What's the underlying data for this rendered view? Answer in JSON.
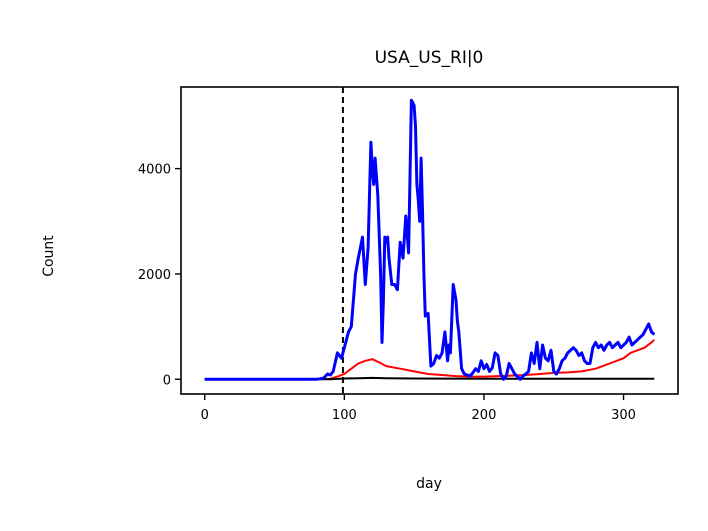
{
  "chart_data": {
    "type": "line",
    "title": "USA_US_RI|0",
    "xlabel": "day",
    "ylabel": "Count",
    "xlim": [
      -17,
      339
    ],
    "ylim": [
      -280,
      5550
    ],
    "xticks": [
      0,
      100,
      200,
      300
    ],
    "yticks": [
      0,
      2000,
      4000
    ],
    "grid": false,
    "legend": "none",
    "vline": {
      "x": 99,
      "style": "dashed",
      "color": "#000000"
    },
    "series": [
      {
        "color": "#0000ff",
        "x": [
          0,
          80,
          85,
          88,
          90,
          92,
          95,
          98,
          100,
          103,
          105,
          108,
          110,
          113,
          115,
          117,
          118,
          119,
          120,
          121,
          122,
          124,
          126,
          127,
          128,
          129,
          130,
          131,
          132,
          134,
          136,
          138,
          140,
          142,
          144,
          146,
          148,
          150,
          151,
          152,
          153,
          154,
          155,
          156,
          157,
          158,
          160,
          162,
          164,
          166,
          168,
          170,
          172,
          174,
          175,
          176,
          178,
          180,
          181,
          182,
          184,
          186,
          188,
          190,
          192,
          194,
          196,
          198,
          200,
          202,
          204,
          206,
          208,
          210,
          212,
          214,
          216,
          218,
          220,
          222,
          224,
          226,
          228,
          230,
          232,
          234,
          236,
          238,
          240,
          242,
          244,
          246,
          248,
          250,
          252,
          254,
          256,
          258,
          260,
          262,
          264,
          266,
          268,
          270,
          272,
          274,
          276,
          278,
          280,
          282,
          284,
          286,
          288,
          290,
          292,
          294,
          296,
          298,
          300,
          302,
          304,
          306,
          308,
          310,
          312,
          314,
          316,
          318,
          320,
          322
        ],
        "y": [
          0,
          0,
          20,
          100,
          80,
          150,
          500,
          400,
          600,
          900,
          1000,
          2000,
          2300,
          2700,
          1800,
          2500,
          3500,
          4500,
          4000,
          3700,
          4200,
          3500,
          2000,
          700,
          1500,
          2700,
          2600,
          2700,
          2300,
          1800,
          1800,
          1700,
          2600,
          2300,
          3100,
          2400,
          5300,
          5200,
          4800,
          3700,
          3400,
          3000,
          4200,
          3200,
          2000,
          1200,
          1250,
          250,
          300,
          450,
          400,
          500,
          900,
          350,
          650,
          500,
          1800,
          1500,
          1100,
          900,
          200,
          100,
          80,
          60,
          120,
          200,
          150,
          350,
          200,
          280,
          150,
          220,
          500,
          450,
          100,
          0,
          60,
          300,
          200,
          100,
          50,
          0,
          60,
          100,
          150,
          500,
          300,
          700,
          200,
          650,
          400,
          350,
          550,
          150,
          100,
          200,
          350,
          400,
          500,
          550,
          600,
          550,
          450,
          500,
          350,
          300,
          300,
          600,
          700,
          600,
          650,
          550,
          650,
          700,
          600,
          650,
          700,
          600,
          650,
          700,
          800,
          650,
          700,
          750,
          800,
          850,
          950,
          1050,
          900,
          850
        ]
      },
      {
        "color": "#ff0000",
        "x": [
          0,
          80,
          90,
          95,
          100,
          105,
          110,
          115,
          120,
          125,
          130,
          140,
          150,
          160,
          170,
          180,
          190,
          200,
          210,
          220,
          230,
          240,
          250,
          260,
          270,
          280,
          290,
          300,
          305,
          310,
          315,
          320,
          322
        ],
        "y": [
          0,
          0,
          10,
          50,
          100,
          200,
          300,
          350,
          380,
          320,
          250,
          200,
          150,
          100,
          80,
          60,
          50,
          50,
          60,
          70,
          80,
          100,
          120,
          130,
          150,
          200,
          300,
          400,
          500,
          550,
          600,
          700,
          750
        ]
      },
      {
        "color": "#000000",
        "x": [
          0,
          90,
          100,
          110,
          120,
          130,
          150,
          200,
          250,
          300,
          322
        ],
        "y": [
          0,
          0,
          15,
          20,
          25,
          20,
          15,
          10,
          10,
          10,
          10
        ]
      }
    ]
  }
}
